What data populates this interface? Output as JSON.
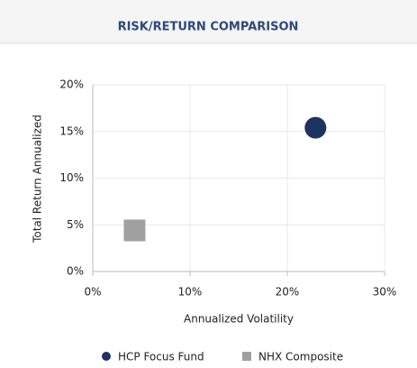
{
  "chart_data": {
    "type": "scatter",
    "title": "RISK/RETURN COMPARISON",
    "x_label": "Annualized Volatility",
    "y_label": "Total Return Annualized",
    "xlim": [
      0,
      30
    ],
    "ylim": [
      0,
      20
    ],
    "xticks": [
      {
        "value": 0,
        "label": "0%"
      },
      {
        "value": 10,
        "label": "10%"
      },
      {
        "value": 20,
        "label": "20%"
      },
      {
        "value": 30,
        "label": "30%"
      }
    ],
    "yticks": [
      {
        "value": 0,
        "label": "0%"
      },
      {
        "value": 5,
        "label": "5%"
      },
      {
        "value": 10,
        "label": "10%"
      },
      {
        "value": 15,
        "label": "15%"
      },
      {
        "value": 20,
        "label": "20%"
      }
    ],
    "grid": true,
    "legend": "bottom",
    "series": [
      {
        "name": "HCP Focus Fund",
        "color": "#1d3461",
        "marker": "circle",
        "x": [
          22.9
        ],
        "values": [
          15.4
        ]
      },
      {
        "name": "NHX Composite",
        "color": "#a0a0a0",
        "marker": "square",
        "x": [
          4.3
        ],
        "values": [
          4.4
        ]
      }
    ]
  }
}
